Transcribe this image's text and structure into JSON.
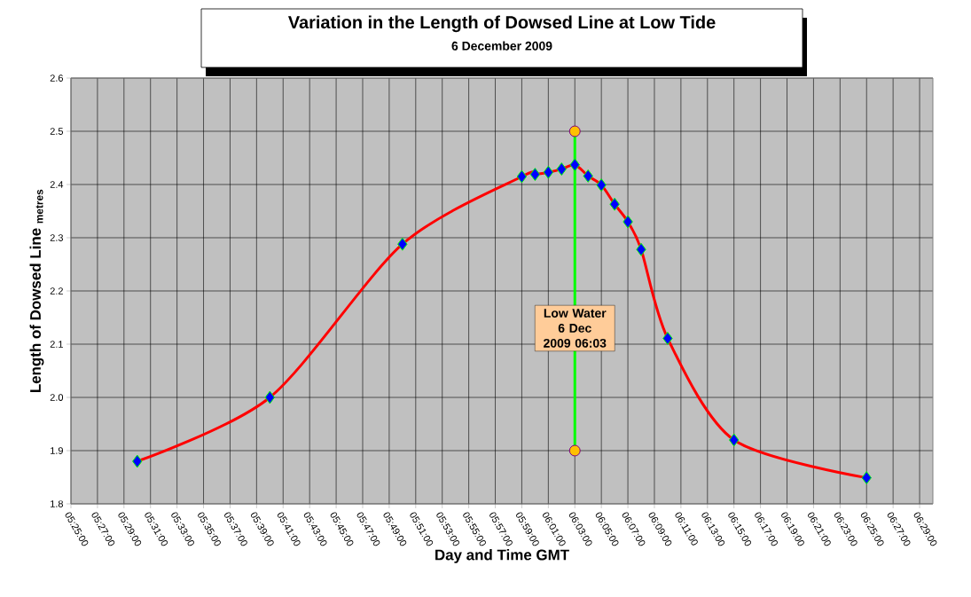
{
  "chart_data": {
    "type": "line",
    "title": "Variation in the Length of Dowsed Line at Low Tide",
    "subtitle": "6 December 2009",
    "xlabel": "Day and Time  GMT",
    "ylabel": "Length of Dowsed Line $_{metres}$",
    "series": [
      {
        "color": "#ff0000",
        "marker": "diamond",
        "x": [
          5.5,
          5.66667,
          5.83333,
          5.98333,
          6,
          6.01667,
          6.03333,
          6.05,
          6.06667,
          6.08333,
          6.1,
          6.11667,
          6.13333,
          6.16667,
          6.25,
          6.41667
        ],
        "values": [
          1.88,
          2.0,
          2.288,
          2.415,
          2.419,
          2.423,
          2.429,
          2.437,
          2.416,
          2.399,
          2.363,
          2.33,
          2.278,
          2.111,
          1.92,
          1.849
        ]
      },
      {
        "color": "#00ff00",
        "marker": "circle",
        "x": [
          6.05,
          6.05
        ],
        "values": [
          1.9,
          2.5
        ]
      }
    ],
    "annotations": [
      {
        "text": "Low Water 6 Dec 2009 06:03",
        "x": 6.05,
        "y": 2.13
      }
    ],
    "xlim": [
      5.41667,
      6.5
    ],
    "xticks": [
      {
        "value": 5.41667,
        "label": "05:25:00"
      },
      {
        "value": 5.45,
        "label": "05:27:00"
      },
      {
        "value": 5.48333,
        "label": "05:29:00"
      },
      {
        "value": 5.51667,
        "label": "05:31:00"
      },
      {
        "value": 5.55,
        "label": "05:33:00"
      },
      {
        "value": 5.58333,
        "label": "05:35:00"
      },
      {
        "value": 5.61667,
        "label": "05:37:00"
      },
      {
        "value": 5.65,
        "label": "05:39:00"
      },
      {
        "value": 5.68333,
        "label": "05:41:00"
      },
      {
        "value": 5.71667,
        "label": "05:43:00"
      },
      {
        "value": 5.75,
        "label": "05:45:00"
      },
      {
        "value": 5.78333,
        "label": "05:47:00"
      },
      {
        "value": 5.81667,
        "label": "05:49:00"
      },
      {
        "value": 5.85,
        "label": "05:51:00"
      },
      {
        "value": 5.88333,
        "label": "05:53:00"
      },
      {
        "value": 5.91667,
        "label": "05:55:00"
      },
      {
        "value": 5.95,
        "label": "05:57:00"
      },
      {
        "value": 5.98333,
        "label": "05:59:00"
      },
      {
        "value": 6.01667,
        "label": "06:01:00"
      },
      {
        "value": 6.05,
        "label": "06:03:00"
      },
      {
        "value": 6.08333,
        "label": "06:05:00"
      },
      {
        "value": 6.11667,
        "label": "06:07:00"
      },
      {
        "value": 6.15,
        "label": "06:09:00"
      },
      {
        "value": 6.18333,
        "label": "06:11:00"
      },
      {
        "value": 6.21667,
        "label": "06:13:00"
      },
      {
        "value": 6.25,
        "label": "06:15:00"
      },
      {
        "value": 6.28333,
        "label": "06:17:00"
      },
      {
        "value": 6.31667,
        "label": "06:19:00"
      },
      {
        "value": 6.35,
        "label": "06:21:00"
      },
      {
        "value": 6.38333,
        "label": "06:23:00"
      },
      {
        "value": 6.41667,
        "label": "06:25:00"
      },
      {
        "value": 6.45,
        "label": "06:27:00"
      },
      {
        "value": 6.48333,
        "label": "06:29:00"
      }
    ],
    "ylim": [
      1.8,
      2.6
    ],
    "yticks": [
      1.8,
      1.9,
      {
        "value": 2.0,
        "label": "2.0"
      },
      2.1,
      2.2,
      2.3,
      2.4,
      2.5,
      2.6
    ],
    "grid": true
  }
}
